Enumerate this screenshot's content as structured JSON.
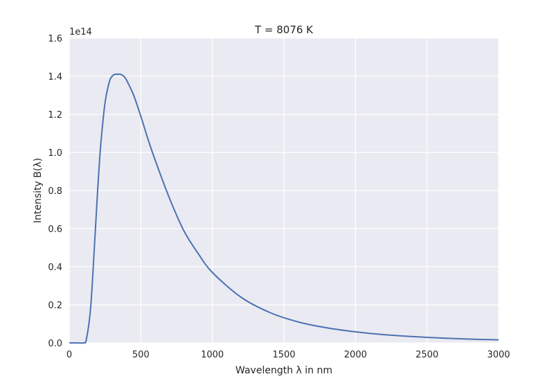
{
  "chart_data": {
    "type": "line",
    "title": "T = 8076 K",
    "xlabel": "Wavelength λ in nm",
    "ylabel": "Intensity B(λ)",
    "y_offset_label": "1e14",
    "xlim": [
      0,
      3000
    ],
    "ylim": [
      0,
      160000000000000.0
    ],
    "x_ticks": [
      0,
      500,
      1000,
      1500,
      2000,
      2500,
      3000
    ],
    "x_tick_labels": [
      "0",
      "500",
      "1000",
      "1500",
      "2000",
      "2500",
      "3000"
    ],
    "y_ticks": [
      0,
      20000000000000.0,
      40000000000000.0,
      60000000000000.0,
      80000000000000.0,
      100000000000000.0,
      120000000000000.0,
      140000000000000.0,
      160000000000000.0
    ],
    "y_tick_labels": [
      "0.0",
      "0.2",
      "0.4",
      "0.6",
      "0.8",
      "1.0",
      "1.2",
      "1.4",
      "1.6"
    ],
    "grid": true,
    "series": [
      {
        "color": "#4c72b0",
        "x": [
          1,
          50,
          100,
          120,
          150,
          180,
          200,
          220,
          250,
          280,
          300,
          320,
          340,
          358,
          380,
          400,
          450,
          500,
          550,
          600,
          700,
          800,
          900,
          1000,
          1200,
          1400,
          1600,
          1800,
          2000,
          2200,
          2500,
          2800,
          3000
        ],
        "y": [
          0,
          0,
          30000000000.0,
          2000000000000.0,
          19000000000000.0,
          56000000000000.0,
          82000000000000.0,
          104000000000000.0,
          126000000000000.0,
          137000000000000.0,
          140000000000000.0,
          141000000000000.0,
          141000000000000.0,
          141000000000000.0,
          140000000000000.0,
          138000000000000.0,
          130000000000000.0,
          119000000000000.0,
          107000000000000.0,
          96000000000000.0,
          76000000000000.0,
          59000000000000.0,
          47000000000000.0,
          37000000000000.0,
          24000000000000.0,
          16000000000000.0,
          11000000000000.0,
          7900000000000.0,
          5800000000000.0,
          4300000000000.0,
          2900000000000.0,
          2000000000000.0,
          1600000000000.0
        ]
      }
    ]
  }
}
